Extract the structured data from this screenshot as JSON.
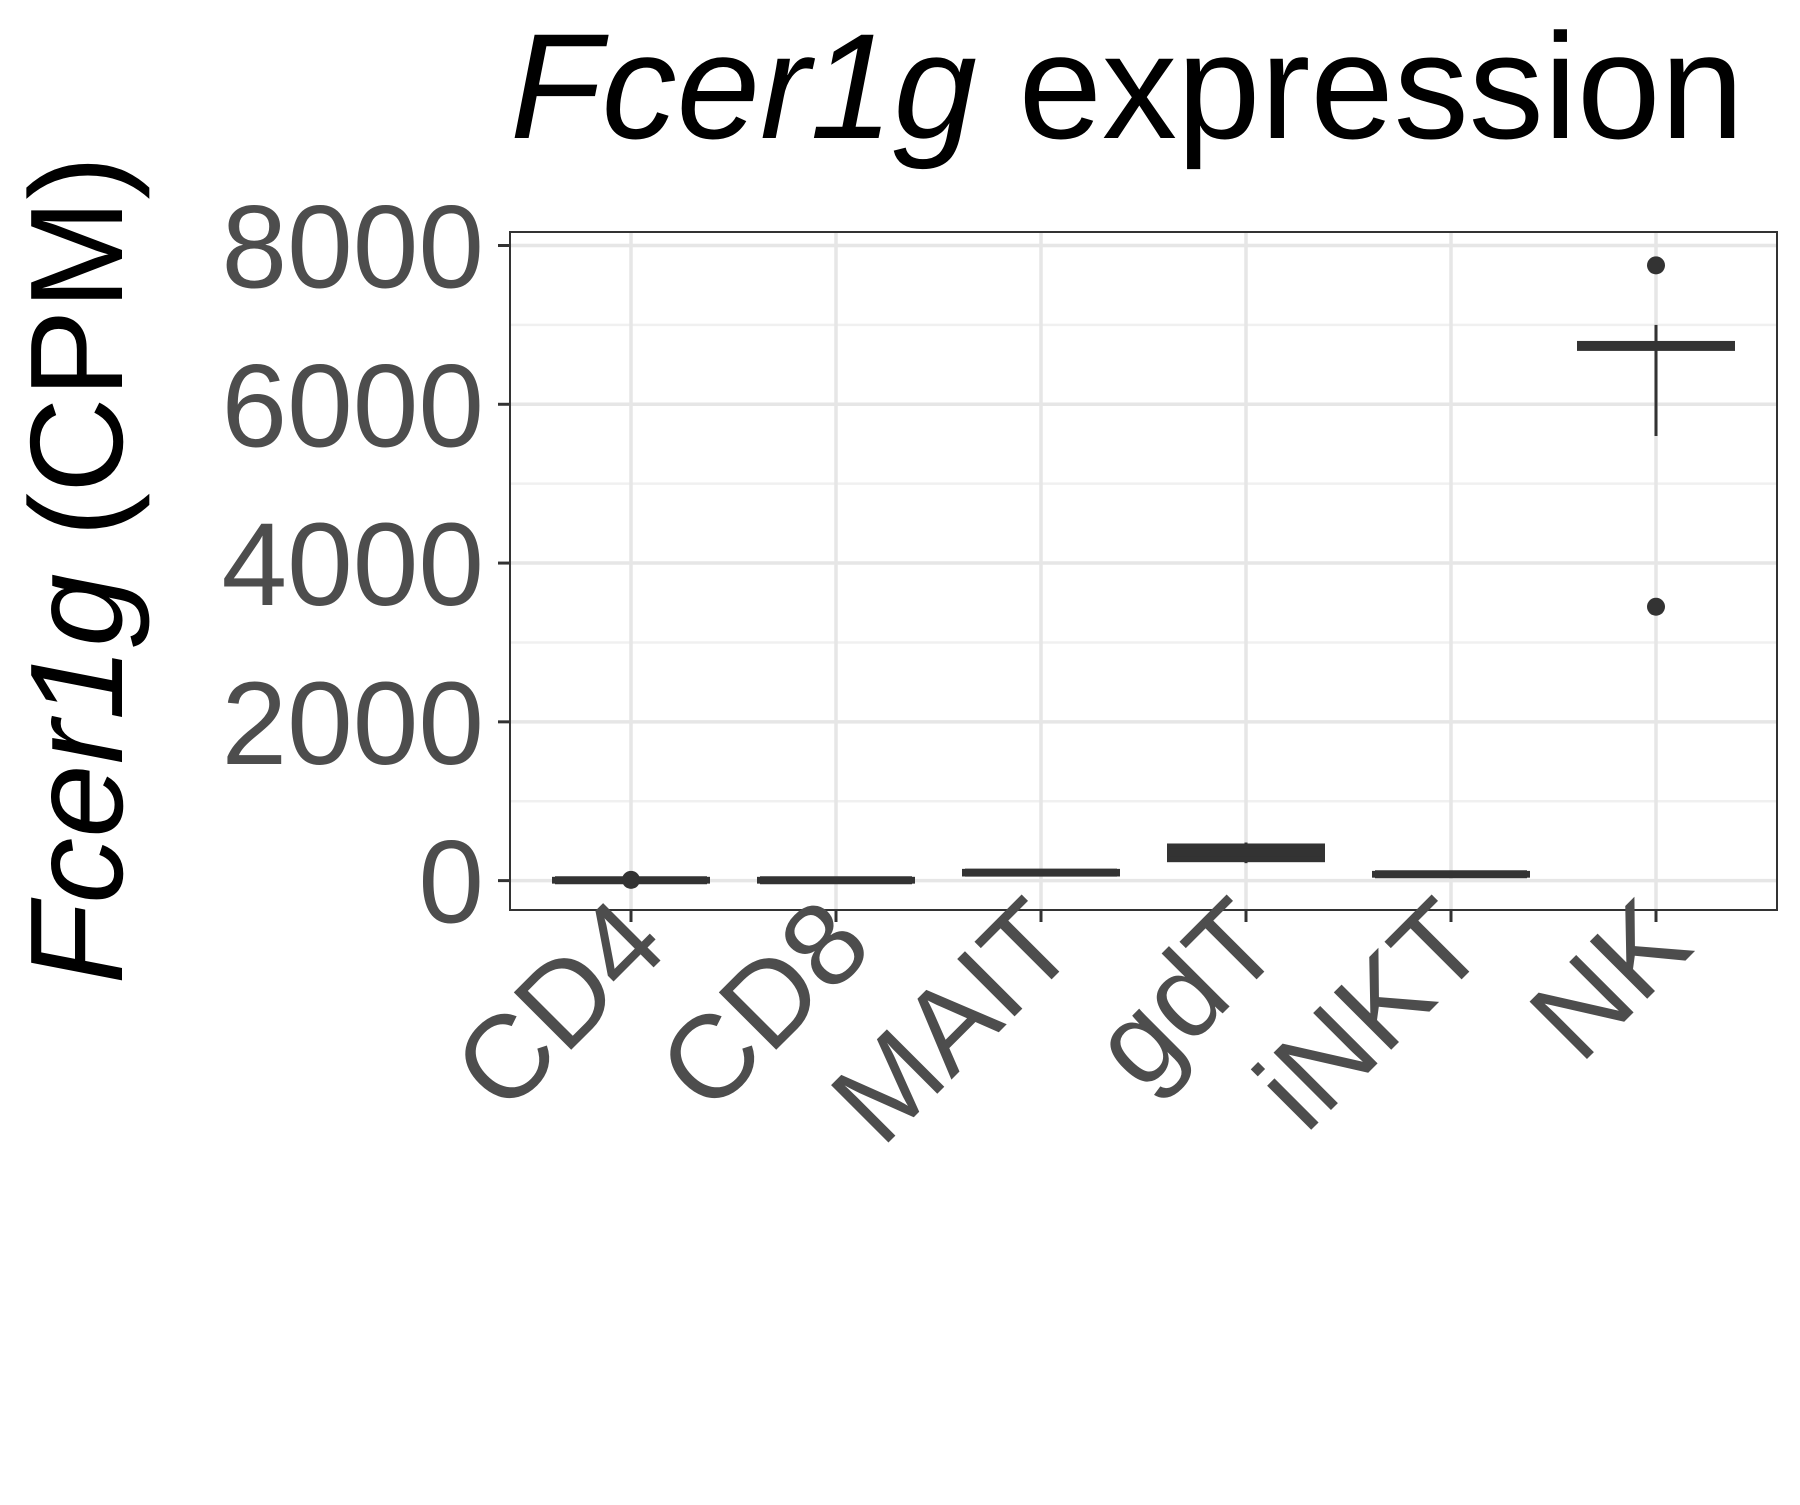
{
  "chart_data": {
    "type": "box",
    "title_italic": "Fcer1g",
    "title_rest": " expression",
    "ylabel_italic": "Fcer1g",
    "ylabel_rest": " (CPM)",
    "xlabel": "",
    "ylim": [
      -370,
      8170
    ],
    "yticks": [
      0,
      2000,
      4000,
      6000,
      8000
    ],
    "ytick_labels": [
      "0",
      "2000",
      "4000",
      "6000",
      "8000"
    ],
    "yminor": [
      1000,
      3000,
      5000,
      7000
    ],
    "grid": true,
    "categories": [
      "CD4",
      "CD8",
      "MAIT",
      "gdT",
      "iNKT",
      "NK"
    ],
    "boxes": [
      {
        "category": "CD4",
        "lower_whisker": 0,
        "q1": 0,
        "median": 5,
        "q3": 10,
        "upper_whisker": 20,
        "outliers": [
          10
        ]
      },
      {
        "category": "CD8",
        "lower_whisker": 0,
        "q1": 0,
        "median": 5,
        "q3": 10,
        "upper_whisker": 15,
        "outliers": []
      },
      {
        "category": "MAIT",
        "lower_whisker": 80,
        "q1": 90,
        "median": 100,
        "q3": 110,
        "upper_whisker": 120,
        "outliers": []
      },
      {
        "category": "gdT",
        "lower_whisker": 220,
        "q1": 270,
        "median": 350,
        "q3": 430,
        "upper_whisker": 480,
        "outliers": []
      },
      {
        "category": "iNKT",
        "lower_whisker": 70,
        "q1": 75,
        "median": 80,
        "q3": 85,
        "upper_whisker": 90,
        "outliers": []
      },
      {
        "category": "NK",
        "lower_whisker": 5600,
        "q1": 6710,
        "median": 6730,
        "q3": 6760,
        "upper_whisker": 7000,
        "outliers": [
          7750,
          3450
        ]
      }
    ]
  }
}
